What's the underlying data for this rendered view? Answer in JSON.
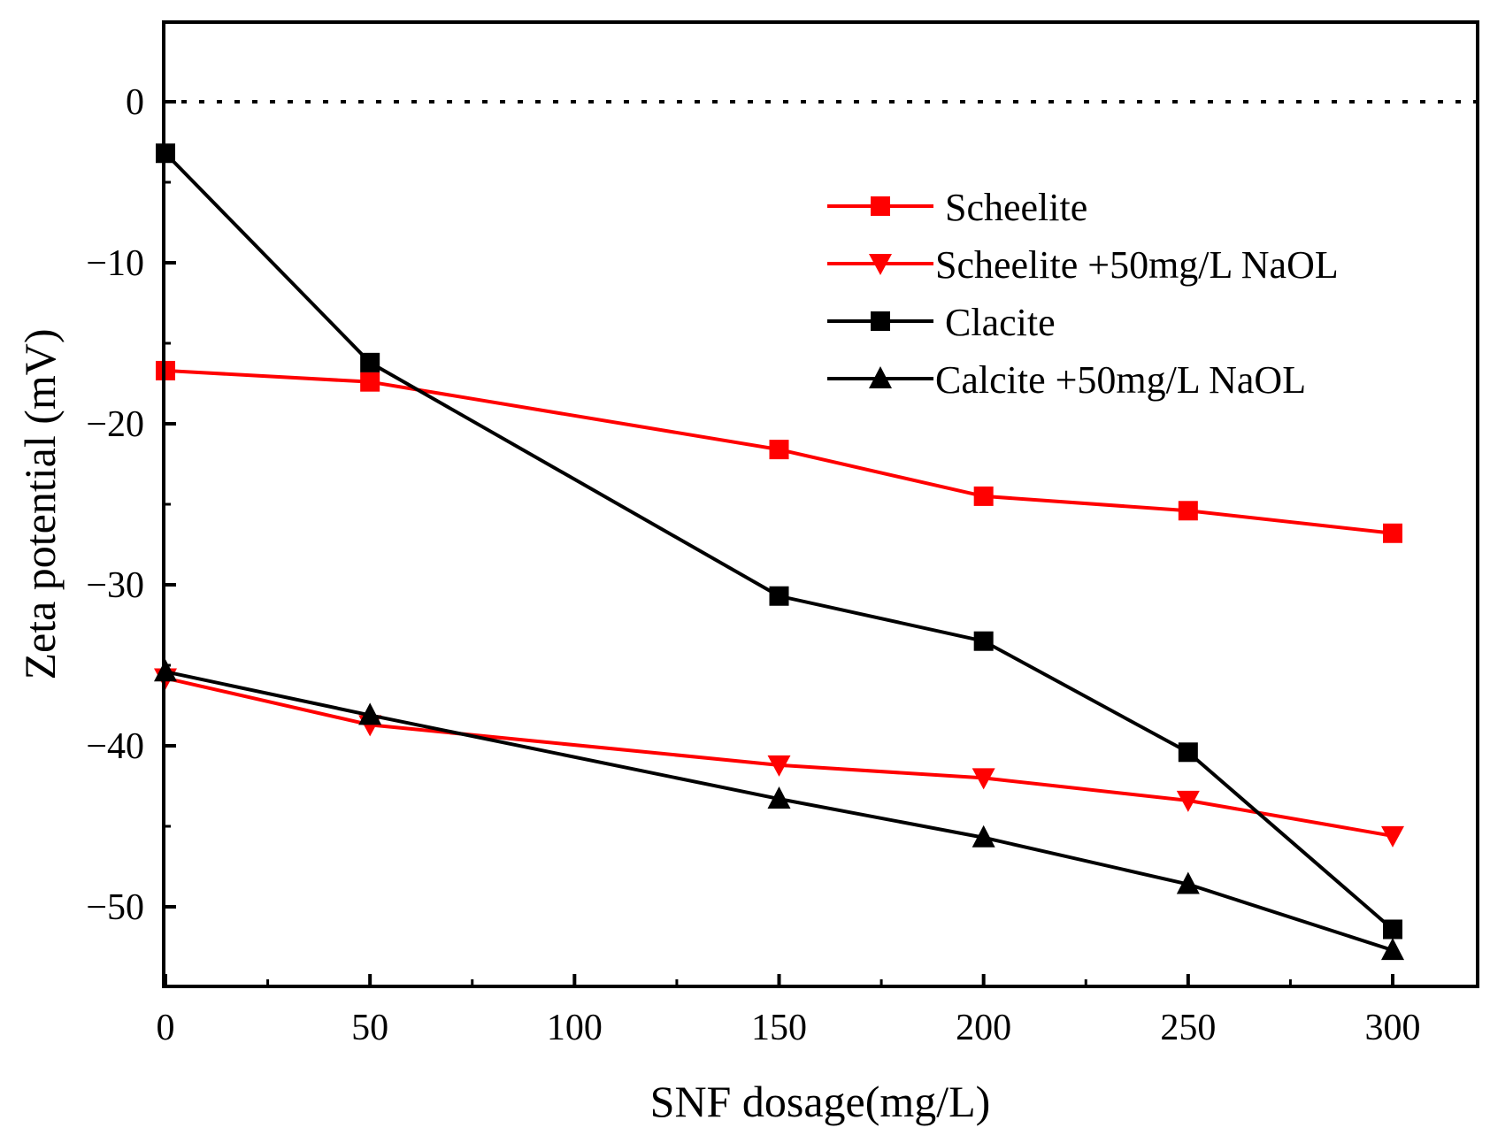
{
  "chart_data": {
    "type": "line",
    "xlabel": "SNF dosage(mg/L)",
    "ylabel": "Zeta potential (mV)",
    "xlim": [
      0,
      320
    ],
    "ylim": [
      -55,
      5
    ],
    "xticks": [
      0,
      50,
      100,
      150,
      200,
      250,
      300
    ],
    "xtick_labels": [
      "0",
      "50",
      "100",
      "150",
      "200",
      "250",
      "300"
    ],
    "yticks": [
      0,
      -10,
      -20,
      -30,
      -40,
      -50
    ],
    "ytick_labels": [
      "0",
      "−10",
      "−20",
      "−30",
      "−40",
      "−50"
    ],
    "reference_line": {
      "y": 0,
      "style": "dotted",
      "color": "#000000"
    },
    "legend_position": "upper-right",
    "x": [
      0,
      50,
      150,
      200,
      250,
      300
    ],
    "series": [
      {
        "name": "Scheelite",
        "legend_label": " Scheelite",
        "color": "#ff0000",
        "marker": "square",
        "values": [
          -16.7,
          -17.4,
          -21.6,
          -24.5,
          -25.4,
          -26.8
        ]
      },
      {
        "name": "Scheelite +50mg/L NaOL",
        "legend_label": "Scheelite +50mg/L NaOL",
        "color": "#ff0000",
        "marker": "triangle-down",
        "values": [
          -35.8,
          -38.7,
          -41.2,
          -42.0,
          -43.4,
          -45.6
        ]
      },
      {
        "name": "Clacite",
        "legend_label": " Clacite",
        "color": "#000000",
        "marker": "square",
        "values": [
          -3.2,
          -16.2,
          -30.7,
          -33.5,
          -40.4,
          -51.4
        ]
      },
      {
        "name": "Calcite +50mg/L NaOL",
        "legend_label": "Calcite +50mg/L NaOL",
        "color": "#000000",
        "marker": "triangle-up",
        "values": [
          -35.4,
          -38.1,
          -43.3,
          -45.7,
          -48.6,
          -52.7
        ]
      }
    ]
  }
}
